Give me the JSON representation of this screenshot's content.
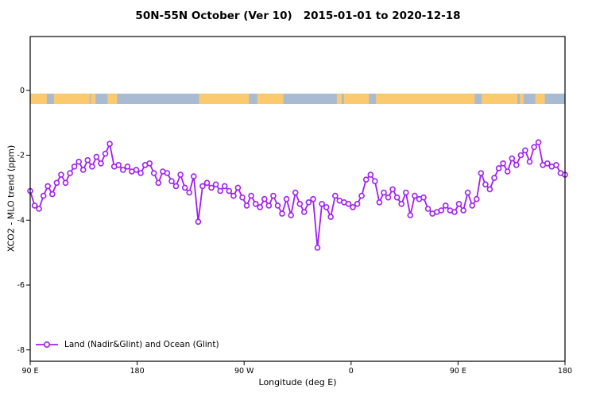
{
  "title": "50N-55N October (Ver 10)   2015-01-01 to 2020-12-18",
  "legend": {
    "label": "Land (Nadir&Glint) and Ocean (Glint)"
  },
  "colors": {
    "line": "#A020F0",
    "marker_fill": "#ffffff",
    "land": "#FBCA6E",
    "ocean": "#A9BBD3",
    "axis": "#000000"
  },
  "chart_data": {
    "type": "line",
    "title": "50N-55N October (Ver 10)   2015-01-01 to 2020-12-18",
    "xlabel": "Longitude (deg E)",
    "ylabel": "XCO2 - MLO trend (ppm)",
    "xlim": [
      90,
      540
    ],
    "ylim": [
      -8.35,
      1.66
    ],
    "grid": false,
    "legend_position": "bottom-left-inside",
    "x_ticks": [
      {
        "pos": 90,
        "label": "90 E"
      },
      {
        "pos": 180,
        "label": "180"
      },
      {
        "pos": 270,
        "label": "90 W"
      },
      {
        "pos": 360,
        "label": "0"
      },
      {
        "pos": 450,
        "label": "90 E"
      },
      {
        "pos": 540,
        "label": "180"
      }
    ],
    "y_ticks": [
      {
        "pos": 0,
        "label": "0"
      },
      {
        "pos": -2,
        "label": "-2"
      },
      {
        "pos": -4,
        "label": "-4"
      },
      {
        "pos": -6,
        "label": "-6"
      },
      {
        "pos": -8,
        "label": "-8"
      }
    ],
    "surface_band": {
      "description": "land/ocean strip along 50N-55N plotted just below y=0",
      "y_top": -0.1,
      "y_bottom": -0.42,
      "land_segments": [
        [
          90,
          104
        ],
        [
          110,
          140
        ],
        [
          141,
          145
        ],
        [
          155,
          163
        ],
        [
          232,
          274
        ],
        [
          281,
          303
        ],
        [
          348,
          352
        ],
        [
          354,
          375
        ],
        [
          381,
          464
        ],
        [
          470,
          500
        ],
        [
          502,
          505
        ],
        [
          515,
          523
        ]
      ]
    },
    "series": [
      {
        "name": "Land (Nadir&Glint) and Ocean (Glint)",
        "marker": "circle-open",
        "x_start": 90,
        "x_step": 3.719,
        "values": [
          -3.1,
          -3.55,
          -3.65,
          -3.25,
          -2.95,
          -3.2,
          -2.85,
          -2.6,
          -2.85,
          -2.55,
          -2.35,
          -2.2,
          -2.45,
          -2.15,
          -2.35,
          -2.05,
          -2.25,
          -1.95,
          -1.65,
          -2.35,
          -2.3,
          -2.45,
          -2.35,
          -2.5,
          -2.45,
          -2.55,
          -2.3,
          -2.25,
          -2.55,
          -2.85,
          -2.5,
          -2.55,
          -2.8,
          -2.95,
          -2.6,
          -3.0,
          -3.15,
          -2.65,
          -4.05,
          -2.95,
          -2.85,
          -3.0,
          -2.9,
          -3.1,
          -2.95,
          -3.1,
          -3.25,
          -3.0,
          -3.3,
          -3.55,
          -3.25,
          -3.5,
          -3.6,
          -3.35,
          -3.55,
          -3.25,
          -3.55,
          -3.8,
          -3.35,
          -3.85,
          -3.15,
          -3.5,
          -3.75,
          -3.45,
          -3.35,
          -4.85,
          -3.5,
          -3.6,
          -3.9,
          -3.25,
          -3.4,
          -3.45,
          -3.5,
          -3.6,
          -3.5,
          -3.25,
          -2.75,
          -2.6,
          -2.8,
          -3.45,
          -3.15,
          -3.3,
          -3.05,
          -3.3,
          -3.5,
          -3.15,
          -3.85,
          -3.25,
          -3.35,
          -3.3,
          -3.65,
          -3.8,
          -3.75,
          -3.7,
          -3.55,
          -3.7,
          -3.75,
          -3.5,
          -3.7,
          -3.15,
          -3.55,
          -3.35,
          -2.55,
          -2.9,
          -3.05,
          -2.7,
          -2.4,
          -2.25,
          -2.5,
          -2.1,
          -2.3,
          -2.0,
          -1.85,
          -2.2,
          -1.75,
          -1.6,
          -2.3,
          -2.25,
          -2.35,
          -2.3,
          -2.55,
          -2.6
        ]
      }
    ]
  }
}
